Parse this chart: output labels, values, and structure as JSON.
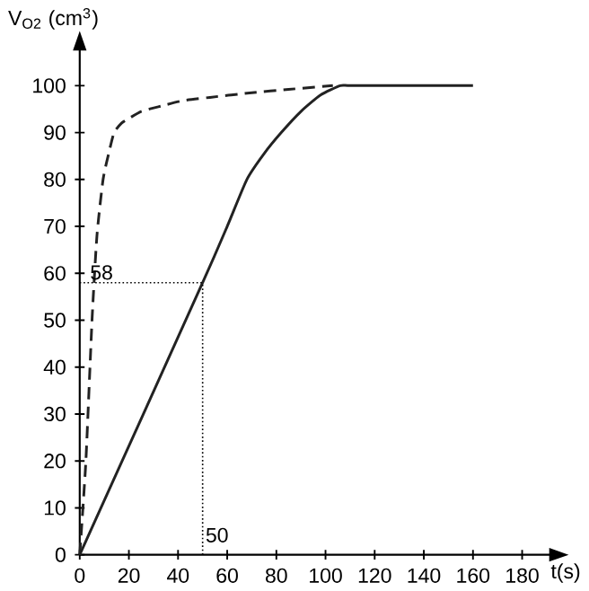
{
  "chart_data": {
    "type": "line",
    "xlabel": "t(s)",
    "ylabel": "V$_{O2}$ (cm$^{3}$)",
    "xlim": [
      0,
      192
    ],
    "ylim": [
      0,
      108
    ],
    "xticks": [
      0,
      20,
      40,
      60,
      80,
      100,
      120,
      140,
      160,
      180
    ],
    "yticks": [
      0,
      10,
      20,
      30,
      40,
      50,
      60,
      70,
      80,
      90,
      100
    ],
    "grid": false,
    "marker": "none",
    "series": [
      {
        "color": "#222222",
        "line_style": "solid",
        "x": [
          0,
          50,
          60,
          68,
          75,
          82,
          90,
          98,
          106,
          110,
          130,
          160
        ],
        "values": [
          0,
          58,
          70,
          80,
          85.5,
          90,
          94.5,
          98,
          100,
          100,
          100,
          100
        ]
      },
      {
        "color": "#222222",
        "line_style": "dashed",
        "x": [
          0,
          2.5,
          5,
          7,
          9.5,
          12,
          14,
          17,
          20,
          25,
          32,
          42,
          53,
          70,
          85,
          103
        ],
        "values": [
          0,
          20,
          50,
          68,
          80,
          86,
          90,
          92,
          93,
          94.5,
          95.5,
          96.8,
          97.5,
          98.5,
          99.2,
          100
        ]
      }
    ],
    "annotations": [
      {
        "text": "58",
        "x": 50,
        "y": 58
      },
      {
        "text": "50",
        "x": 50,
        "y": 58
      }
    ]
  }
}
